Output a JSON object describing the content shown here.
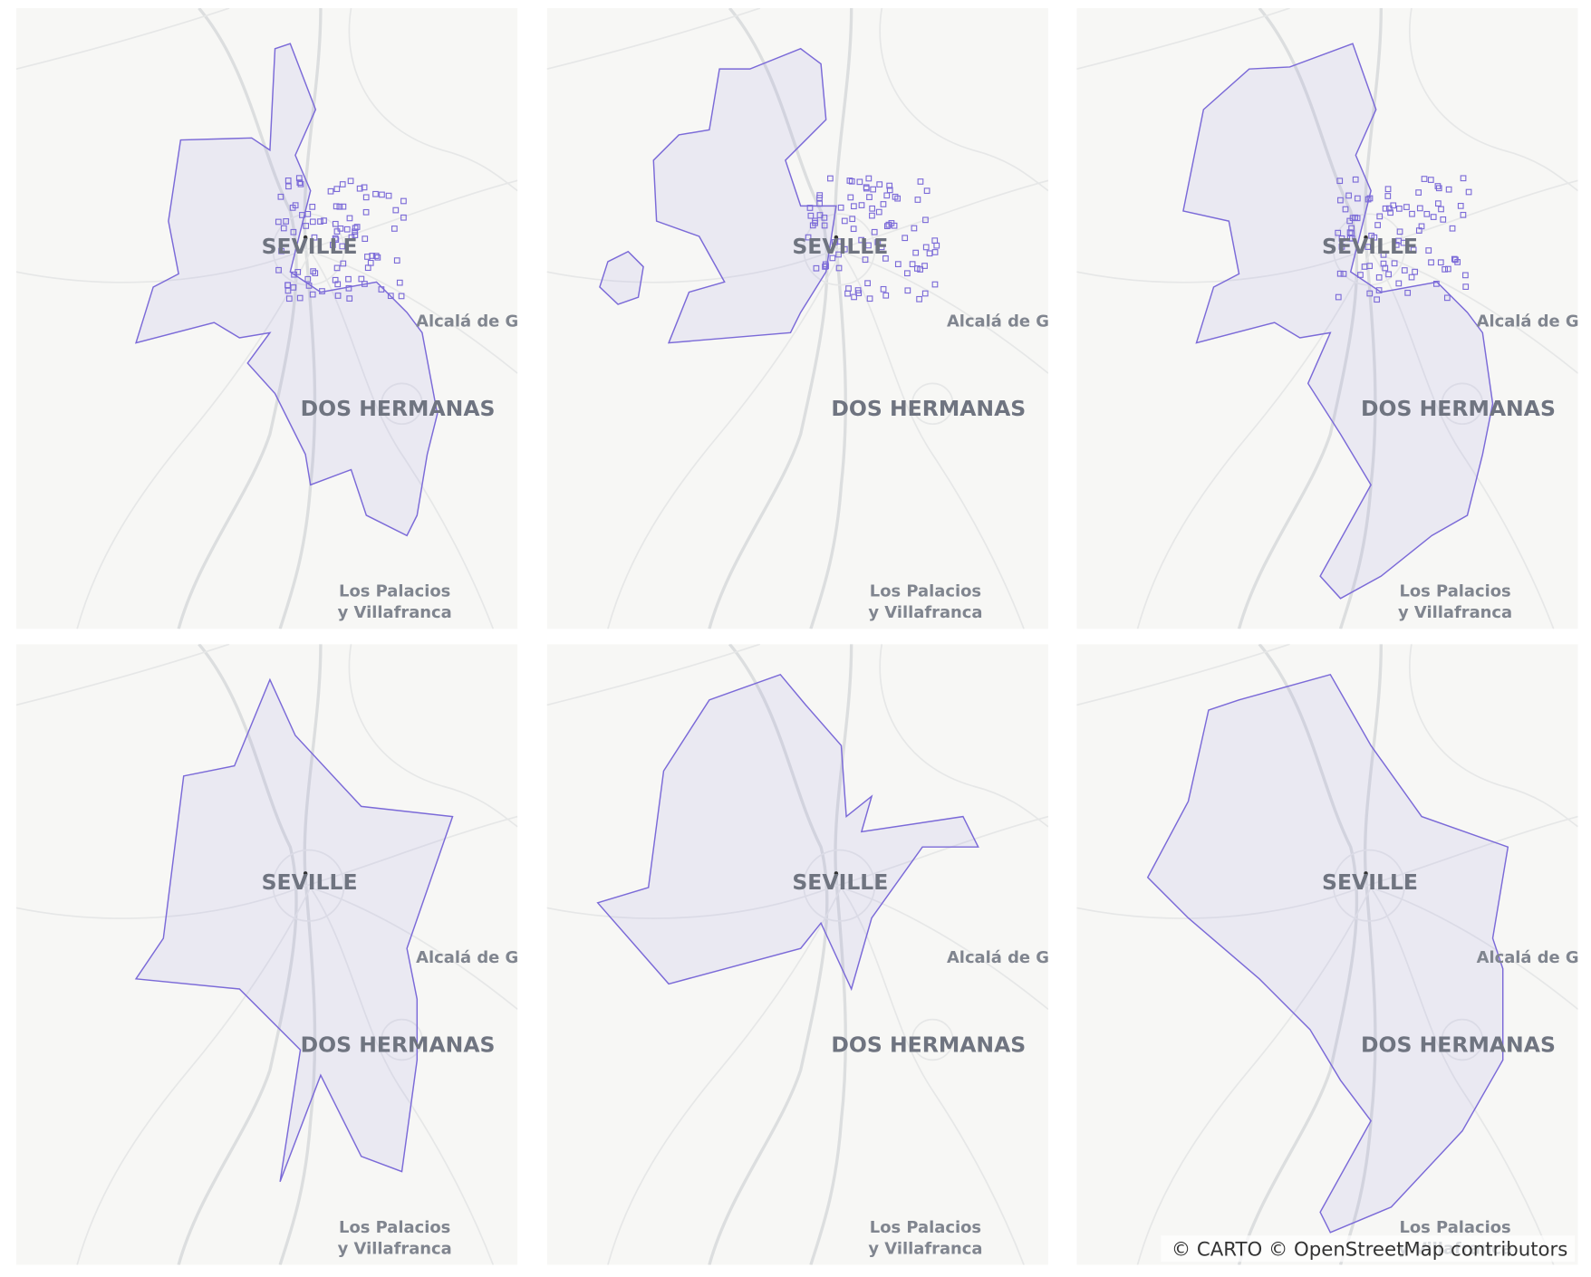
{
  "labels": {
    "city": "SEVILLE",
    "east_town": "Alcalá de Gu",
    "south_town": "DOS HERMANAS",
    "far_south_line1": "Los Palacios",
    "far_south_line2": "y Villafranca"
  },
  "attribution": "© CARTO © OpenStreetMap contributors"
}
